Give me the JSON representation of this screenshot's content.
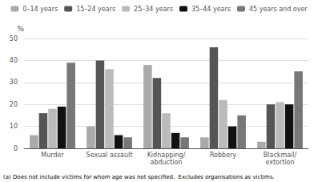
{
  "chart_data": {
    "type": "bar",
    "categories": [
      "Murder",
      "Sexual assault",
      "Kidnapping/\nabduction",
      "Robbery",
      "Blackmail/\nextortion"
    ],
    "series": [
      {
        "name": "0–14 years",
        "color": "#aaaaaa",
        "values": [
          6,
          10,
          38,
          5,
          3
        ]
      },
      {
        "name": "15–24 years",
        "color": "#555555",
        "values": [
          16,
          40,
          32,
          46,
          20
        ]
      },
      {
        "name": "25–34 years",
        "color": "#bbbbbb",
        "values": [
          18,
          36,
          16,
          22,
          21
        ]
      },
      {
        "name": "35–44 years",
        "color": "#111111",
        "values": [
          19,
          6,
          7,
          10,
          20
        ]
      },
      {
        "name": "45 years and over",
        "color": "#777777",
        "values": [
          39,
          5,
          5,
          15,
          35
        ]
      }
    ],
    "ylabel": "%",
    "ylim": [
      0,
      50
    ],
    "yticks": [
      0,
      10,
      20,
      30,
      40,
      50
    ],
    "grid": true,
    "legend": "upper right",
    "footnote": "(a) Does not include victims for whom age was not specified.  Excludes organisations as victims."
  }
}
